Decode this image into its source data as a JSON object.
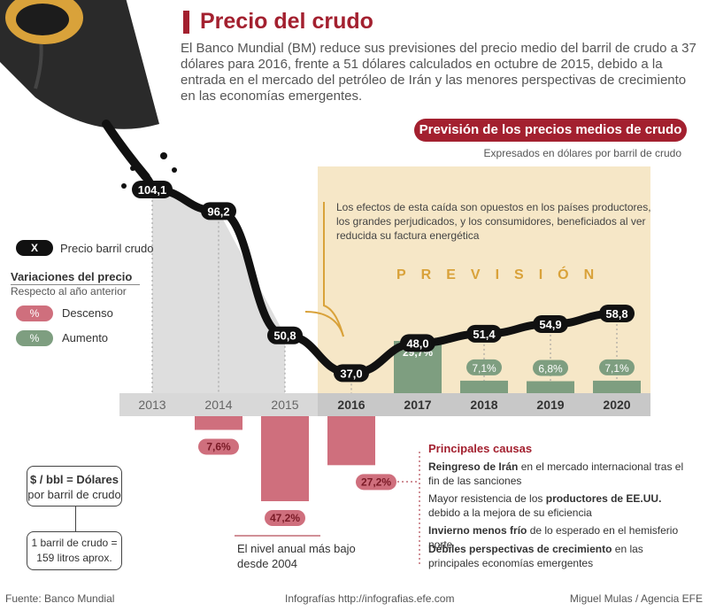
{
  "header": {
    "title": "Precio del crudo",
    "intro": "El Banco Mundial (BM) reduce sus previsiones del precio medio del barril de crudo a 37 dólares para 2016, frente a 51 dólares calculados en octubre de 2015, debido a la entrada en el mercado del petróleo de Irán y las menores perspectivas de crecimiento en las economías emergentes."
  },
  "chart_data": {
    "type": "line",
    "title": "Previsión de los precios medios de crudo",
    "subtitle": "Expresados en dólares por barril de crudo",
    "categories": [
      "2013",
      "2014",
      "2015",
      "2016",
      "2017",
      "2018",
      "2019",
      "2020"
    ],
    "series": [
      {
        "name": "Precio barril crudo",
        "values": [
          104.1,
          96.2,
          50.8,
          37.0,
          48.0,
          51.4,
          54.9,
          58.8
        ]
      }
    ],
    "value_labels": [
      "104,1",
      "96,2",
      "50,8",
      "37,0",
      "48,0",
      "51,4",
      "54,9",
      "58,8"
    ],
    "variations": [
      {
        "year": "2014",
        "value": -7.6,
        "label": "7,6%"
      },
      {
        "year": "2015",
        "value": -47.2,
        "label": "47,2%"
      },
      {
        "year": "2016",
        "value": -27.2,
        "label": "27,2%"
      },
      {
        "year": "2017",
        "value": 29.7,
        "label": "29,7%"
      },
      {
        "year": "2018",
        "value": 7.1,
        "label": "7,1%"
      },
      {
        "year": "2019",
        "value": 6.8,
        "label": "6,8%"
      },
      {
        "year": "2020",
        "value": 7.1,
        "label": "7,1%"
      }
    ],
    "forecast_start": "2016",
    "forecast_label": "PREVISIÓN",
    "ylim": [
      0,
      110
    ],
    "colors": {
      "line": "#111111",
      "descenso": "#cf6f7d",
      "aumento": "#7e9e80",
      "forecast_bg": "#f6e7c7",
      "accent": "#a3202f",
      "forecast_text": "#d9a23a"
    }
  },
  "annotation": "Los efectos de esta caída son opuestos en los países productores, los grandes perjudicados, y los consumidores, beneficiados al ver reducida su factura energética",
  "legend": {
    "pill_symbol": "X",
    "pill_label": "Precio barril crudo",
    "variations_title": "Variaciones del precio",
    "variations_subtitle": "Respecto al año anterior",
    "swatch_symbol": "%",
    "descenso": "Descenso",
    "aumento": "Aumento"
  },
  "units": {
    "bbl_line1": "$ / bbl = Dólares",
    "bbl_line2": "por barril de crudo",
    "barrel_line1": "1 barril de crudo =",
    "barrel_line2": "159 litros aprox."
  },
  "low_note": {
    "line1": "El nivel anual más bajo",
    "line2": "desde 2004"
  },
  "causes": {
    "title": "Principales causas",
    "items": [
      {
        "bold": "Reingreso de Irán",
        "text": " en el mercado internacional tras el fin de las sanciones",
        "pre": ""
      },
      {
        "pre": "Mayor resistencia de los ",
        "bold": "productores de EE.UU.",
        "text": " debido a la mejora de su eficiencia"
      },
      {
        "pre": "",
        "bold": "Invierno menos frío",
        "text": " de lo esperado en el hemisferio norte"
      },
      {
        "pre": "",
        "bold": "Débiles perspectivas de crecimiento",
        "text": " en las principales economías emergentes"
      }
    ]
  },
  "footer": {
    "source": "Fuente: Banco Mundial",
    "site": "Infografías http://infografias.efe.com",
    "credit": "Miguel Mulas / Agencia EFE"
  }
}
